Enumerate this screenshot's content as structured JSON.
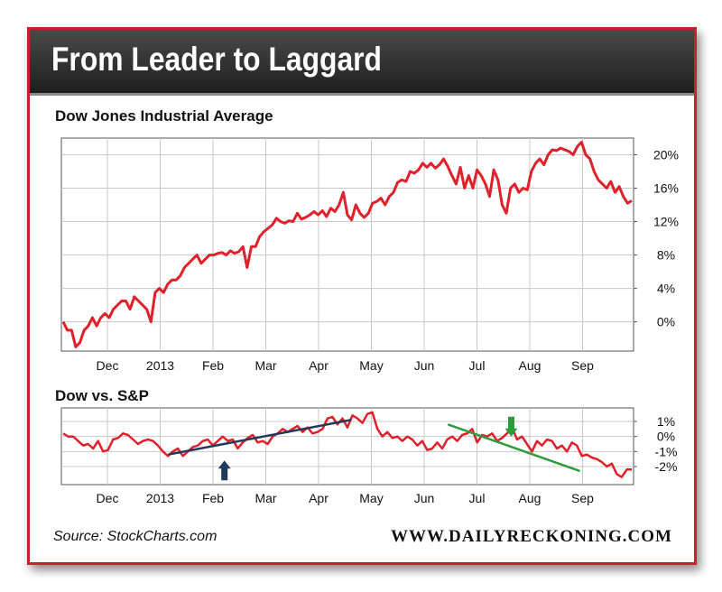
{
  "header": {
    "title": "From Leader to Laggard"
  },
  "footer": {
    "source": "Source: StockCharts.com",
    "website": "WWW.DAILYRECKONING.COM"
  },
  "colors": {
    "brand_red": "#cc1f2c",
    "series_red": "#e0202a",
    "trend_navy": "#1f3a5a",
    "trend_green": "#2f9a3a",
    "grid": "#c8c8c8"
  },
  "chart_data": [
    {
      "type": "line",
      "title": "Dow Jones Industrial Average",
      "xlabel": "",
      "ylabel": "",
      "ylim": [
        -3.5,
        22
      ],
      "ytick_values": [
        0,
        4,
        8,
        12,
        16,
        20
      ],
      "ytick_labels": [
        "0%",
        "4%",
        "8%",
        "12%",
        "16%",
        "20%"
      ],
      "xtick_labels": [
        "Dec",
        "2013",
        "Feb",
        "Mar",
        "Apr",
        "May",
        "Jun",
        "Jul",
        "Aug",
        "Sep"
      ],
      "series": [
        {
          "name": "Dow Jones Industrial Average (%)",
          "values": [
            0,
            -1,
            -1,
            -3,
            -2.5,
            -1,
            -0.5,
            0.5,
            -0.5,
            0.5,
            1,
            0.5,
            1.5,
            2,
            2.5,
            2.5,
            1.5,
            3,
            2.5,
            2,
            1.5,
            0,
            3.5,
            4,
            3.5,
            4.5,
            5,
            5,
            5.5,
            6.5,
            7,
            7.5,
            8,
            7,
            7.5,
            8,
            8,
            8.2,
            8.3,
            8,
            8.5,
            8.2,
            8.4,
            9,
            6.5,
            9,
            9,
            10.2,
            10.8,
            11.2,
            11.6,
            12.4,
            12,
            11.8,
            12.1,
            12,
            13,
            12.3,
            12.5,
            12.8,
            13.2,
            12.8,
            13.3,
            12.6,
            13.6,
            13.2,
            14,
            15.5,
            12.8,
            12.2,
            14,
            13,
            12.5,
            13,
            14.2,
            14.4,
            14.8,
            14,
            15,
            15.5,
            16.7,
            17,
            16.8,
            18,
            17.8,
            18.2,
            19,
            18.5,
            19,
            18.4,
            18.8,
            19.5,
            18.6,
            17.5,
            16.5,
            18.5,
            16,
            17.5,
            16,
            18.2,
            17.5,
            16.5,
            15,
            18.2,
            17,
            14,
            13,
            16,
            16.5,
            15.5,
            16,
            15.8,
            18,
            19,
            19.5,
            18.8,
            20,
            20.6,
            20.5,
            20.8,
            20.6,
            20.4,
            20,
            21,
            21.5,
            20,
            19.5,
            18,
            17,
            16.5,
            16,
            16.8,
            15.5,
            16.2,
            15,
            14.2,
            14.5
          ]
        }
      ]
    },
    {
      "type": "line",
      "title": "Dow vs. S&P",
      "xlabel": "",
      "ylabel": "",
      "ylim": [
        -3.2,
        1.9
      ],
      "ytick_values": [
        1,
        0,
        -1,
        -2
      ],
      "ytick_labels": [
        "1%",
        "0%",
        "-1%",
        "-2%"
      ],
      "xtick_labels": [
        "Dec",
        "2013",
        "Feb",
        "Mar",
        "Apr",
        "May",
        "Jun",
        "Jul",
        "Aug",
        "Sep"
      ],
      "series": [
        {
          "name": "Dow vs. S&P (%)",
          "values": [
            0.2,
            0,
            0,
            -0.3,
            -0.6,
            -0.5,
            -0.8,
            -0.3,
            -1,
            -0.9,
            -0.2,
            -0.1,
            0.2,
            0.1,
            -0.2,
            -0.5,
            -0.3,
            -0.2,
            -0.3,
            -0.6,
            -1,
            -1.3,
            -1,
            -0.8,
            -1.3,
            -1,
            -0.7,
            -0.6,
            -0.3,
            -0.2,
            -0.6,
            -0.3,
            0,
            -0.3,
            -0.2,
            -0.8,
            -0.4,
            -0.1,
            0.1,
            -0.4,
            -0.3,
            -0.5,
            0,
            0.2,
            0.5,
            0.3,
            0.5,
            0.7,
            0.3,
            0.6,
            0.2,
            0.3,
            0.5,
            1.2,
            1.3,
            0.8,
            1.2,
            0.6,
            1.4,
            1.2,
            0.9,
            1.5,
            1.6,
            0.5,
            0,
            0.3,
            -0.1,
            0,
            -0.3,
            0,
            -0.2,
            -0.6,
            -0.3,
            -0.9,
            -0.8,
            -0.4,
            -0.8,
            -0.2,
            0,
            -0.3,
            0.1,
            0.2,
            0.5,
            -0.4,
            0.1,
            0,
            0.2,
            -0.3,
            -0.1,
            0.2,
            0.6,
            -0.2,
            0,
            -0.5,
            -1,
            -0.3,
            -0.6,
            -0.2,
            -0.3,
            -0.8,
            -0.6,
            -1,
            -0.4,
            -0.6,
            -1.3,
            -1.2,
            -1.4,
            -1.5,
            -1.7,
            -2,
            -1.8,
            -2.5,
            -2.7,
            -2.2,
            -2.2
          ]
        }
      ],
      "trendlines": [
        {
          "name": "rising trendline",
          "color": "navy",
          "from": [
            8.1,
            -1.2
          ],
          "to": [
            18.5,
            1.1
          ]
        },
        {
          "name": "falling trendline",
          "color": "green",
          "from": [
            24,
            0.8
          ],
          "to": [
            31.5,
            -2.3
          ]
        }
      ],
      "annotations": [
        {
          "name": "up arrow",
          "direction": "up",
          "color": "navy",
          "x_month": 11.3,
          "value": -1.6
        },
        {
          "name": "down arrow",
          "direction": "down",
          "color": "green",
          "x_month": 27.6,
          "value": 0
        }
      ]
    }
  ]
}
